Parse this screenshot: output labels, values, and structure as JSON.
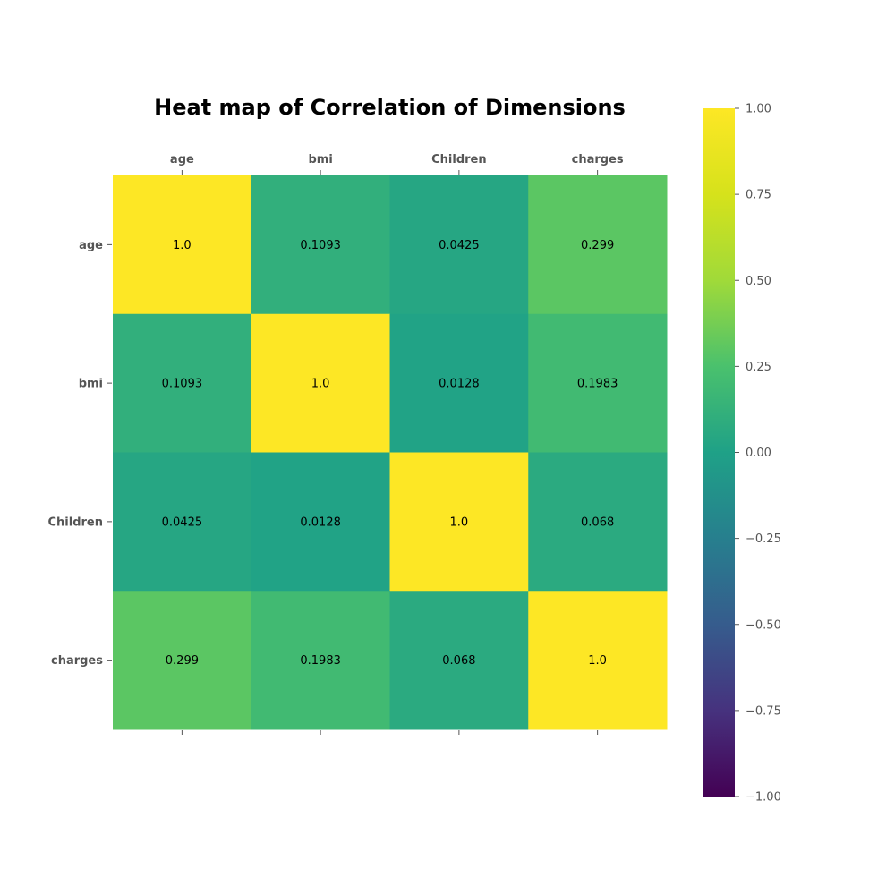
{
  "chart_data": {
    "type": "heatmap",
    "title": "Heat map of Correlation of Dimensions",
    "x_categories": [
      "age",
      "bmi",
      "Children",
      "charges"
    ],
    "y_categories": [
      "age",
      "bmi",
      "Children",
      "charges"
    ],
    "matrix": [
      [
        1.0,
        0.1093,
        0.0425,
        0.299
      ],
      [
        0.1093,
        1.0,
        0.0128,
        0.1983
      ],
      [
        0.0425,
        0.0128,
        1.0,
        0.068
      ],
      [
        0.299,
        0.1983,
        0.068,
        1.0
      ]
    ],
    "cell_labels": [
      [
        "1.0",
        "0.1093",
        "0.0425",
        "0.299"
      ],
      [
        "0.1093",
        "1.0",
        "0.0128",
        "0.1983"
      ],
      [
        "0.0425",
        "0.0128",
        "1.0",
        "0.068"
      ],
      [
        "0.299",
        "0.1983",
        "0.068",
        "1.0"
      ]
    ],
    "colormap": "viridis",
    "vmin": -1.0,
    "vmax": 1.0,
    "colorbar_ticks": [
      1.0,
      0.75,
      0.5,
      0.25,
      0.0,
      -0.25,
      -0.5,
      -0.75,
      -1.0
    ],
    "colorbar_tick_labels": [
      "1.00",
      "0.75",
      "0.50",
      "0.25",
      "0.00",
      "−0.25",
      "−0.50",
      "−0.75",
      "−1.00"
    ],
    "x_axis_position": "top",
    "grid": false
  }
}
